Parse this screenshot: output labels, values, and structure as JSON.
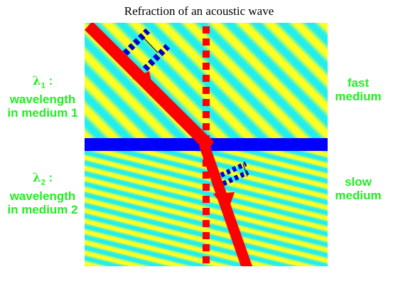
{
  "title": "Refraction of an acoustic wave",
  "labels": {
    "lambda1_symbol": "λ",
    "lambda1_sub": "1",
    "lambda1_suffix": " :",
    "lambda1_line2": "wavelength",
    "lambda1_line3": "in medium 1",
    "lambda2_symbol": "λ",
    "lambda2_sub": "2",
    "lambda2_suffix": " :",
    "lambda2_line2": "wavelength",
    "lambda2_line3": "in medium 2",
    "fast_line1": "fast",
    "fast_line2": "medium",
    "slow_line1": "slow",
    "slow_line2": "medium"
  },
  "colors": {
    "wave_light": "#ffff22",
    "wave_dark": "#22eeee",
    "interface": "#0000ff",
    "ray": "#ff0000",
    "normal": "#ff0000",
    "label_text": "#22ee22",
    "wavelength_marker": "#0000cc"
  }
}
